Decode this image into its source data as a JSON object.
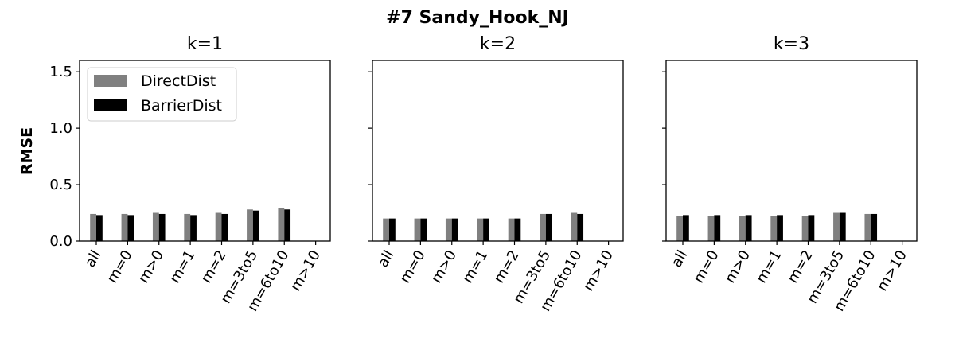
{
  "figure": {
    "title": "#7 Sandy_Hook_NJ"
  },
  "chart_data": [
    {
      "type": "bar",
      "title": "k=1",
      "ylabel": "RMSE",
      "xlabel": "",
      "categories": [
        "all",
        "m=0",
        "m>0",
        "m=1",
        "m=2",
        "m=3to5",
        "m=6to10",
        "m>10"
      ],
      "series": [
        {
          "name": "DirectDist",
          "color": "#808080",
          "values": [
            0.24,
            0.24,
            0.25,
            0.24,
            0.25,
            0.28,
            0.29,
            null
          ]
        },
        {
          "name": "BarrierDist",
          "color": "#000000",
          "values": [
            0.23,
            0.23,
            0.24,
            0.23,
            0.24,
            0.27,
            0.28,
            null
          ]
        }
      ],
      "ylim": [
        0,
        1.6
      ],
      "yticks": [
        "0.0",
        "0.5",
        "1.0",
        "1.5"
      ],
      "legend": "top-left"
    },
    {
      "type": "bar",
      "title": "k=2",
      "ylabel": "",
      "xlabel": "",
      "categories": [
        "all",
        "m=0",
        "m>0",
        "m=1",
        "m=2",
        "m=3to5",
        "m=6to10",
        "m>10"
      ],
      "series": [
        {
          "name": "DirectDist",
          "color": "#808080",
          "values": [
            0.2,
            0.2,
            0.2,
            0.2,
            0.2,
            0.24,
            0.25,
            null
          ]
        },
        {
          "name": "BarrierDist",
          "color": "#000000",
          "values": [
            0.2,
            0.2,
            0.2,
            0.2,
            0.2,
            0.24,
            0.24,
            null
          ]
        }
      ],
      "ylim": [
        0,
        1.6
      ],
      "legend": "none"
    },
    {
      "type": "bar",
      "title": "k=3",
      "ylabel": "",
      "xlabel": "",
      "categories": [
        "all",
        "m=0",
        "m>0",
        "m=1",
        "m=2",
        "m=3to5",
        "m=6to10",
        "m>10"
      ],
      "series": [
        {
          "name": "DirectDist",
          "color": "#808080",
          "values": [
            0.22,
            0.22,
            0.22,
            0.22,
            0.22,
            0.25,
            0.24,
            null
          ]
        },
        {
          "name": "BarrierDist",
          "color": "#000000",
          "values": [
            0.23,
            0.23,
            0.23,
            0.23,
            0.23,
            0.25,
            0.24,
            null
          ]
        }
      ],
      "ylim": [
        0,
        1.6
      ],
      "legend": "none"
    }
  ]
}
